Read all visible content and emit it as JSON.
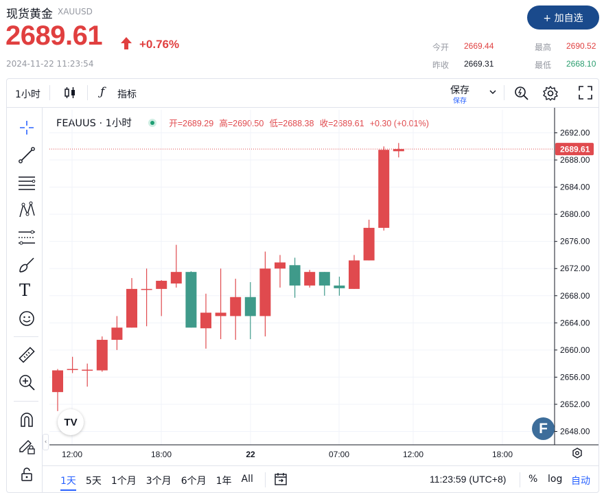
{
  "header": {
    "title": "现货黄金",
    "symbol": "XAUUSD",
    "price": "2689.61",
    "change_pct": "+0.76%",
    "timestamp": "2024-11-22 11:23:54",
    "add_button": "+ 加自选",
    "stats": {
      "open_label": "今开",
      "open_value": "2669.44",
      "high_label": "最高",
      "high_value": "2690.52",
      "prev_close_label": "昨收",
      "prev_close_value": "2669.31",
      "low_label": "最低",
      "low_value": "2668.10"
    }
  },
  "toolbar": {
    "interval": "1小时",
    "indicators": "指标",
    "save": "保存",
    "save_sub": "保存"
  },
  "legend": {
    "symbol_label": "FEAUUS · 1小时",
    "open": "开=2689.29",
    "high": "高=2690.50",
    "low": "低=2688.38",
    "close": "收=2689.61",
    "change": "+0.30 (+0.01%)"
  },
  "bottom": {
    "ranges": [
      "1天",
      "5天",
      "1个月",
      "3个月",
      "6个月",
      "1年",
      "All"
    ],
    "active_range": "1天",
    "clock": "11:23:59 (UTC+8)",
    "percent": "%",
    "log": "log",
    "auto": "自动"
  },
  "colors": {
    "up": "#e04a4e",
    "down": "#3f9a8a",
    "accent": "#2962ff",
    "price_label": "#e04a4e"
  },
  "chart_data": {
    "type": "candlestick",
    "last_price": "2689.61",
    "y_ticks": [
      "2692.00",
      "2688.00",
      "2684.00",
      "2680.00",
      "2676.00",
      "2672.00",
      "2668.00",
      "2664.00",
      "2660.00",
      "2656.00",
      "2652.00",
      "2648.00"
    ],
    "x_ticks": [
      "12:00",
      "18:00",
      "22",
      "07:00",
      "12:00",
      "18:00"
    ],
    "ylim": [
      2646.3,
      2693.8
    ],
    "candles": [
      {
        "o": 2653.8,
        "h": 2657.2,
        "l": 2651.0,
        "c": 2657.0
      },
      {
        "o": 2657.1,
        "h": 2659.0,
        "l": 2656.6,
        "c": 2657.2
      },
      {
        "o": 2657.0,
        "h": 2658.0,
        "l": 2654.6,
        "c": 2657.1
      },
      {
        "o": 2657.0,
        "h": 2662.0,
        "l": 2656.8,
        "c": 2661.5
      },
      {
        "o": 2661.5,
        "h": 2665.0,
        "l": 2660.0,
        "c": 2663.3
      },
      {
        "o": 2663.3,
        "h": 2670.6,
        "l": 2663.3,
        "c": 2669.0
      },
      {
        "o": 2669.0,
        "h": 2672.0,
        "l": 2663.5,
        "c": 2669.0
      },
      {
        "o": 2669.0,
        "h": 2670.3,
        "l": 2665.0,
        "c": 2670.2
      },
      {
        "o": 2669.8,
        "h": 2675.5,
        "l": 2669.2,
        "c": 2671.5
      },
      {
        "o": 2671.5,
        "h": 2671.6,
        "l": 2663.3,
        "c": 2663.3
      },
      {
        "o": 2663.2,
        "h": 2668.3,
        "l": 2660.2,
        "c": 2665.5
      },
      {
        "o": 2665.0,
        "h": 2672.0,
        "l": 2661.6,
        "c": 2665.5
      },
      {
        "o": 2665.0,
        "h": 2670.5,
        "l": 2661.5,
        "c": 2667.8
      },
      {
        "o": 2667.8,
        "h": 2670.0,
        "l": 2661.6,
        "c": 2665.0
      },
      {
        "o": 2665.0,
        "h": 2674.5,
        "l": 2662.0,
        "c": 2672.0
      },
      {
        "o": 2672.0,
        "h": 2674.0,
        "l": 2669.2,
        "c": 2672.9
      },
      {
        "o": 2672.5,
        "h": 2673.6,
        "l": 2667.7,
        "c": 2669.5
      },
      {
        "o": 2669.5,
        "h": 2671.8,
        "l": 2669.2,
        "c": 2671.5
      },
      {
        "o": 2671.5,
        "h": 2671.5,
        "l": 2668.0,
        "c": 2669.5
      },
      {
        "o": 2669.5,
        "h": 2670.8,
        "l": 2668.0,
        "c": 2669.1
      },
      {
        "o": 2669.0,
        "h": 2674.0,
        "l": 2669.0,
        "c": 2673.2
      },
      {
        "o": 2673.2,
        "h": 2679.2,
        "l": 2673.2,
        "c": 2678.0
      },
      {
        "o": 2678.0,
        "h": 2690.0,
        "l": 2677.6,
        "c": 2689.5
      },
      {
        "o": 2689.29,
        "h": 2690.5,
        "l": 2688.38,
        "c": 2689.61
      }
    ]
  }
}
